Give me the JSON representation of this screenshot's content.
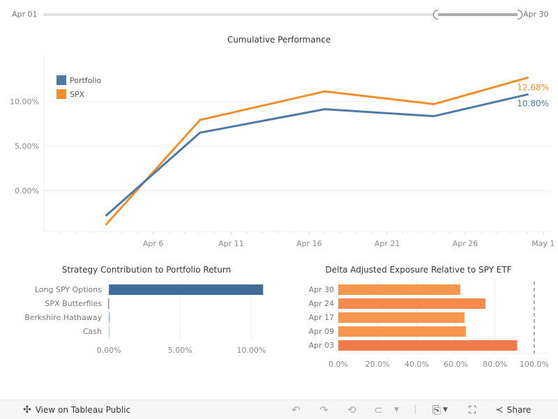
{
  "date_filter": {
    "start_label": "Apr 01",
    "end_label": "Apr 30",
    "range_start_fraction": 0.83,
    "range_end_fraction": 1.0
  },
  "toolbar": {
    "view_on_tableau_label": "View on Tableau Public",
    "share_label": "Share",
    "icons": [
      "tableau-logo-icon",
      "undo-icon",
      "redo-icon",
      "revert-icon",
      "refresh-icon",
      "dropdown-caret-icon",
      "download-icon",
      "fullscreen-icon",
      "share-icon"
    ]
  },
  "colors": {
    "portfolio": "#4e79a7",
    "spx": "#f28e2b",
    "strategy_bar": "#426d9b",
    "exposure_bar": "#f9964e",
    "exposure_bar_mid": "#f68a4c",
    "exposure_bar_dark": "#ef7b4b",
    "axis_text": "#888888",
    "grid": "#ececec"
  },
  "chart_data": [
    {
      "type": "line",
      "title": "Cumulative Performance",
      "xlabel": "",
      "ylabel": "",
      "x": [
        "Apr 03",
        "Apr 09",
        "Apr 17",
        "Apr 24",
        "Apr 30"
      ],
      "x_days": [
        3,
        9,
        17,
        24,
        30
      ],
      "x_ticks": [
        {
          "day": 6,
          "label": "Apr 6"
        },
        {
          "day": 11,
          "label": "Apr 11"
        },
        {
          "day": 16,
          "label": "Apr 16"
        },
        {
          "day": 21,
          "label": "Apr 21"
        },
        {
          "day": 26,
          "label": "Apr 26"
        },
        {
          "day": 31,
          "label": "May 1"
        }
      ],
      "xlim_days": [
        -1,
        31.5
      ],
      "y_ticks": [
        {
          "value": 0,
          "label": "0.00%"
        },
        {
          "value": 5,
          "label": "5.00%"
        },
        {
          "value": 10,
          "label": "10.00%"
        }
      ],
      "ylim": [
        -4.6,
        15.3
      ],
      "grid": true,
      "zero_line": "dotted",
      "legend": {
        "placement": "top-left",
        "entries": [
          "Portfolio",
          "SPX"
        ]
      },
      "series": [
        {
          "name": "Portfolio",
          "values": [
            -2.79,
            6.5,
            9.14,
            8.36,
            10.8
          ],
          "end_label": "10.80%"
        },
        {
          "name": "SPX",
          "values": [
            -3.79,
            7.93,
            11.14,
            9.71,
            12.68
          ],
          "end_label": "12.68%"
        }
      ]
    },
    {
      "type": "bar",
      "orientation": "horizontal",
      "title": "Strategy Contribution to Portfolio Return",
      "categories": [
        "Long SPY Options",
        "SPX Butterflies",
        "Berkshire Hathaway",
        "Cash"
      ],
      "values": [
        10.83,
        -0.05,
        0.05,
        0.02
      ],
      "x_ticks": [
        {
          "value": 0,
          "label": "0.00%"
        },
        {
          "value": 5,
          "label": "5.00%"
        },
        {
          "value": 10,
          "label": "10.00%"
        }
      ],
      "xlim": [
        -0.3,
        11.6
      ],
      "grid": true
    },
    {
      "type": "bar",
      "orientation": "horizontal",
      "title": "Delta Adjusted Exposure Relative to SPY ETF",
      "categories": [
        "Apr 30",
        "Apr 24",
        "Apr 17",
        "Apr 09",
        "Apr 03"
      ],
      "values": [
        62.3,
        75.1,
        64.4,
        65.1,
        91.3
      ],
      "x_ticks": [
        {
          "value": 0,
          "label": "0.0%"
        },
        {
          "value": 20,
          "label": "20.0%"
        },
        {
          "value": 40,
          "label": "40.0%"
        },
        {
          "value": 60,
          "label": "60.0%"
        },
        {
          "value": 80,
          "label": "80.0%"
        },
        {
          "value": 100,
          "label": "100.0%"
        }
      ],
      "xlim": [
        0,
        105
      ],
      "reference_line": {
        "value": 100,
        "style": "dashed"
      },
      "grid": true
    }
  ]
}
